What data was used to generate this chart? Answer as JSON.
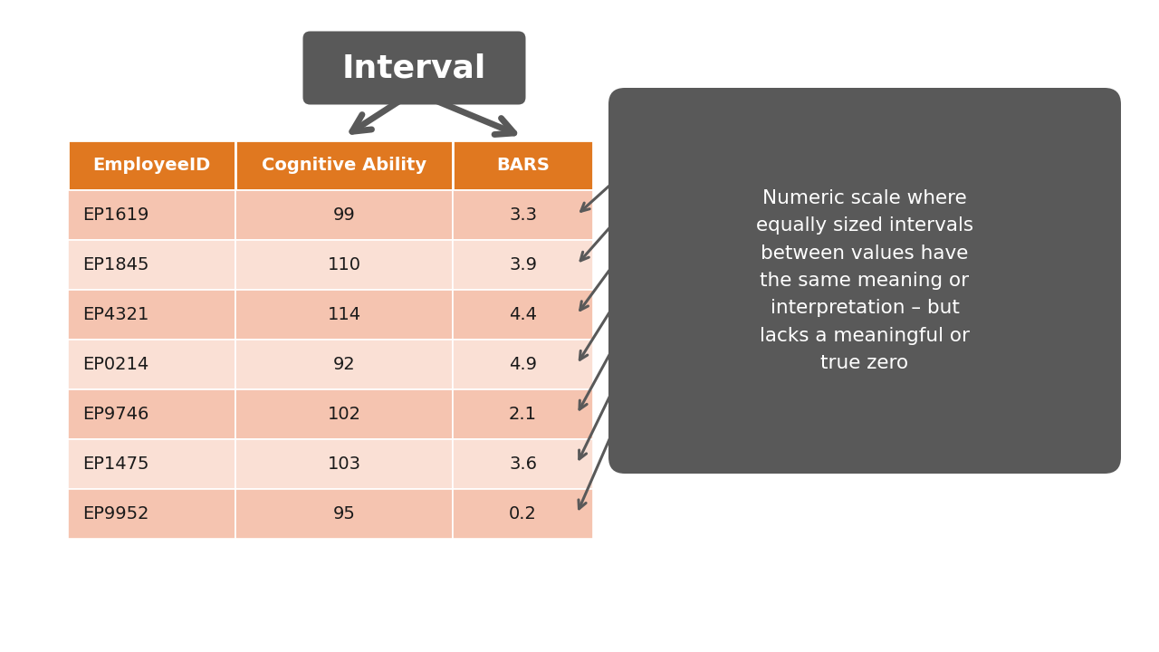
{
  "title": "Interval",
  "header": [
    "EmployeeID",
    "Cognitive Ability",
    "BARS"
  ],
  "rows": [
    [
      "EP1619",
      "99",
      "3.3"
    ],
    [
      "EP1845",
      "110",
      "3.9"
    ],
    [
      "EP4321",
      "114",
      "4.4"
    ],
    [
      "EP0214",
      "92",
      "4.9"
    ],
    [
      "EP9746",
      "102",
      "2.1"
    ],
    [
      "EP1475",
      "103",
      "3.6"
    ],
    [
      "EP9952",
      "95",
      "0.2"
    ]
  ],
  "header_bg": "#E07820",
  "row_bg_odd": "#F5C4B0",
  "row_bg_even": "#FAE0D5",
  "header_text_color": "#FFFFFF",
  "row_text_color": "#1A1A1A",
  "title_bg": "#595959",
  "title_text_color": "#FFFFFF",
  "callout_bg": "#595959",
  "callout_text": "Numeric scale where\nequally sized intervals\nbetween values have\nthe same meaning or\ninterpretation – but\nlacks a meaningful or\ntrue zero",
  "callout_text_color": "#FFFFFF",
  "background_color": "#FFFFFF",
  "arrow_color": "#595959"
}
